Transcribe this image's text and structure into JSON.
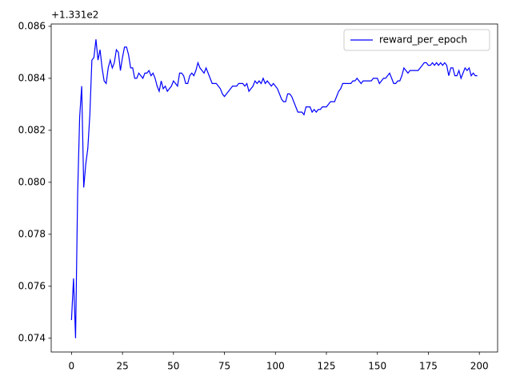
{
  "chart_data": {
    "type": "line",
    "y_offset_label": "+1.331e2",
    "x": [
      0,
      1,
      2,
      3,
      4,
      5,
      6,
      7,
      8,
      9,
      10,
      11,
      12,
      13,
      14,
      15,
      16,
      17,
      18,
      19,
      20,
      21,
      22,
      23,
      24,
      25,
      26,
      27,
      28,
      29,
      30,
      31,
      32,
      33,
      34,
      35,
      36,
      37,
      38,
      39,
      40,
      41,
      42,
      43,
      44,
      45,
      46,
      47,
      48,
      49,
      50,
      51,
      52,
      53,
      54,
      55,
      56,
      57,
      58,
      59,
      60,
      61,
      62,
      63,
      64,
      65,
      66,
      67,
      68,
      69,
      70,
      71,
      72,
      73,
      74,
      75,
      76,
      77,
      78,
      79,
      80,
      81,
      82,
      83,
      84,
      85,
      86,
      87,
      88,
      89,
      90,
      91,
      92,
      93,
      94,
      95,
      96,
      97,
      98,
      99,
      100,
      101,
      102,
      103,
      104,
      105,
      106,
      107,
      108,
      109,
      110,
      111,
      112,
      113,
      114,
      115,
      116,
      117,
      118,
      119,
      120,
      121,
      122,
      123,
      124,
      125,
      126,
      127,
      128,
      129,
      130,
      131,
      132,
      133,
      134,
      135,
      136,
      137,
      138,
      139,
      140,
      141,
      142,
      143,
      144,
      145,
      146,
      147,
      148,
      149,
      150,
      151,
      152,
      153,
      154,
      155,
      156,
      157,
      158,
      159,
      160,
      161,
      162,
      163,
      164,
      165,
      166,
      167,
      168,
      169,
      170,
      171,
      172,
      173,
      174,
      175,
      176,
      177,
      178,
      179,
      180,
      181,
      182,
      183,
      184,
      185,
      186,
      187,
      188,
      189,
      190,
      191,
      192,
      193,
      194,
      195,
      196,
      197,
      198,
      199
    ],
    "series": [
      {
        "name": "reward_per_epoch",
        "color": "#0000ff",
        "values": [
          0.0747,
          0.0763,
          0.074,
          0.0795,
          0.0825,
          0.0837,
          0.0798,
          0.0807,
          0.0813,
          0.0826,
          0.0847,
          0.0848,
          0.0855,
          0.0847,
          0.0851,
          0.0844,
          0.0839,
          0.0838,
          0.0844,
          0.0847,
          0.0844,
          0.0846,
          0.0851,
          0.085,
          0.0843,
          0.0848,
          0.0852,
          0.0852,
          0.0849,
          0.0844,
          0.0844,
          0.084,
          0.084,
          0.0842,
          0.0841,
          0.084,
          0.0842,
          0.0842,
          0.0843,
          0.0841,
          0.0842,
          0.084,
          0.0837,
          0.0835,
          0.0839,
          0.0836,
          0.0837,
          0.0835,
          0.0836,
          0.0837,
          0.0839,
          0.0838,
          0.0837,
          0.0842,
          0.0842,
          0.0841,
          0.0838,
          0.0838,
          0.0841,
          0.0842,
          0.0841,
          0.0843,
          0.0846,
          0.0844,
          0.0843,
          0.0842,
          0.0844,
          0.0842,
          0.084,
          0.0838,
          0.0838,
          0.0838,
          0.0837,
          0.0836,
          0.0834,
          0.0833,
          0.0834,
          0.0835,
          0.0836,
          0.0837,
          0.0837,
          0.0837,
          0.0838,
          0.0838,
          0.0838,
          0.0837,
          0.0838,
          0.0835,
          0.0836,
          0.0837,
          0.0839,
          0.0838,
          0.0839,
          0.0838,
          0.084,
          0.0838,
          0.0839,
          0.0838,
          0.0837,
          0.0838,
          0.0837,
          0.0836,
          0.0834,
          0.0832,
          0.0831,
          0.0831,
          0.0834,
          0.0834,
          0.0833,
          0.0831,
          0.0829,
          0.0827,
          0.0827,
          0.0827,
          0.0826,
          0.0829,
          0.0829,
          0.0829,
          0.0827,
          0.0828,
          0.0827,
          0.0828,
          0.0828,
          0.0829,
          0.0829,
          0.0829,
          0.083,
          0.0831,
          0.0831,
          0.0831,
          0.0833,
          0.0835,
          0.0836,
          0.0838,
          0.0838,
          0.0838,
          0.0838,
          0.0838,
          0.0839,
          0.0839,
          0.084,
          0.0839,
          0.0838,
          0.0839,
          0.0839,
          0.0839,
          0.0839,
          0.0839,
          0.084,
          0.084,
          0.084,
          0.0838,
          0.0839,
          0.084,
          0.084,
          0.0841,
          0.0842,
          0.084,
          0.0838,
          0.0838,
          0.0839,
          0.0839,
          0.0841,
          0.0844,
          0.0843,
          0.0842,
          0.0843,
          0.0843,
          0.0843,
          0.0843,
          0.0843,
          0.0844,
          0.0845,
          0.0846,
          0.0846,
          0.0845,
          0.0845,
          0.0846,
          0.0845,
          0.0846,
          0.0845,
          0.0846,
          0.0845,
          0.0846,
          0.0845,
          0.0841,
          0.0844,
          0.0844,
          0.0841,
          0.0841,
          0.0843,
          0.084,
          0.0842,
          0.0844,
          0.0843,
          0.0844,
          0.0841,
          0.0842,
          0.0841,
          0.0841
        ]
      }
    ],
    "xlim": [
      -9.95,
      208.95
    ],
    "xticks": [
      0,
      25,
      50,
      75,
      100,
      125,
      150,
      175,
      200
    ],
    "ylim": [
      0.07347,
      0.08609
    ],
    "yticks": [
      0.074,
      0.076,
      0.078,
      {
        "value": 0.08,
        "label": "0.080"
      },
      0.082,
      0.084,
      0.086
    ],
    "legend": "upper right"
  }
}
